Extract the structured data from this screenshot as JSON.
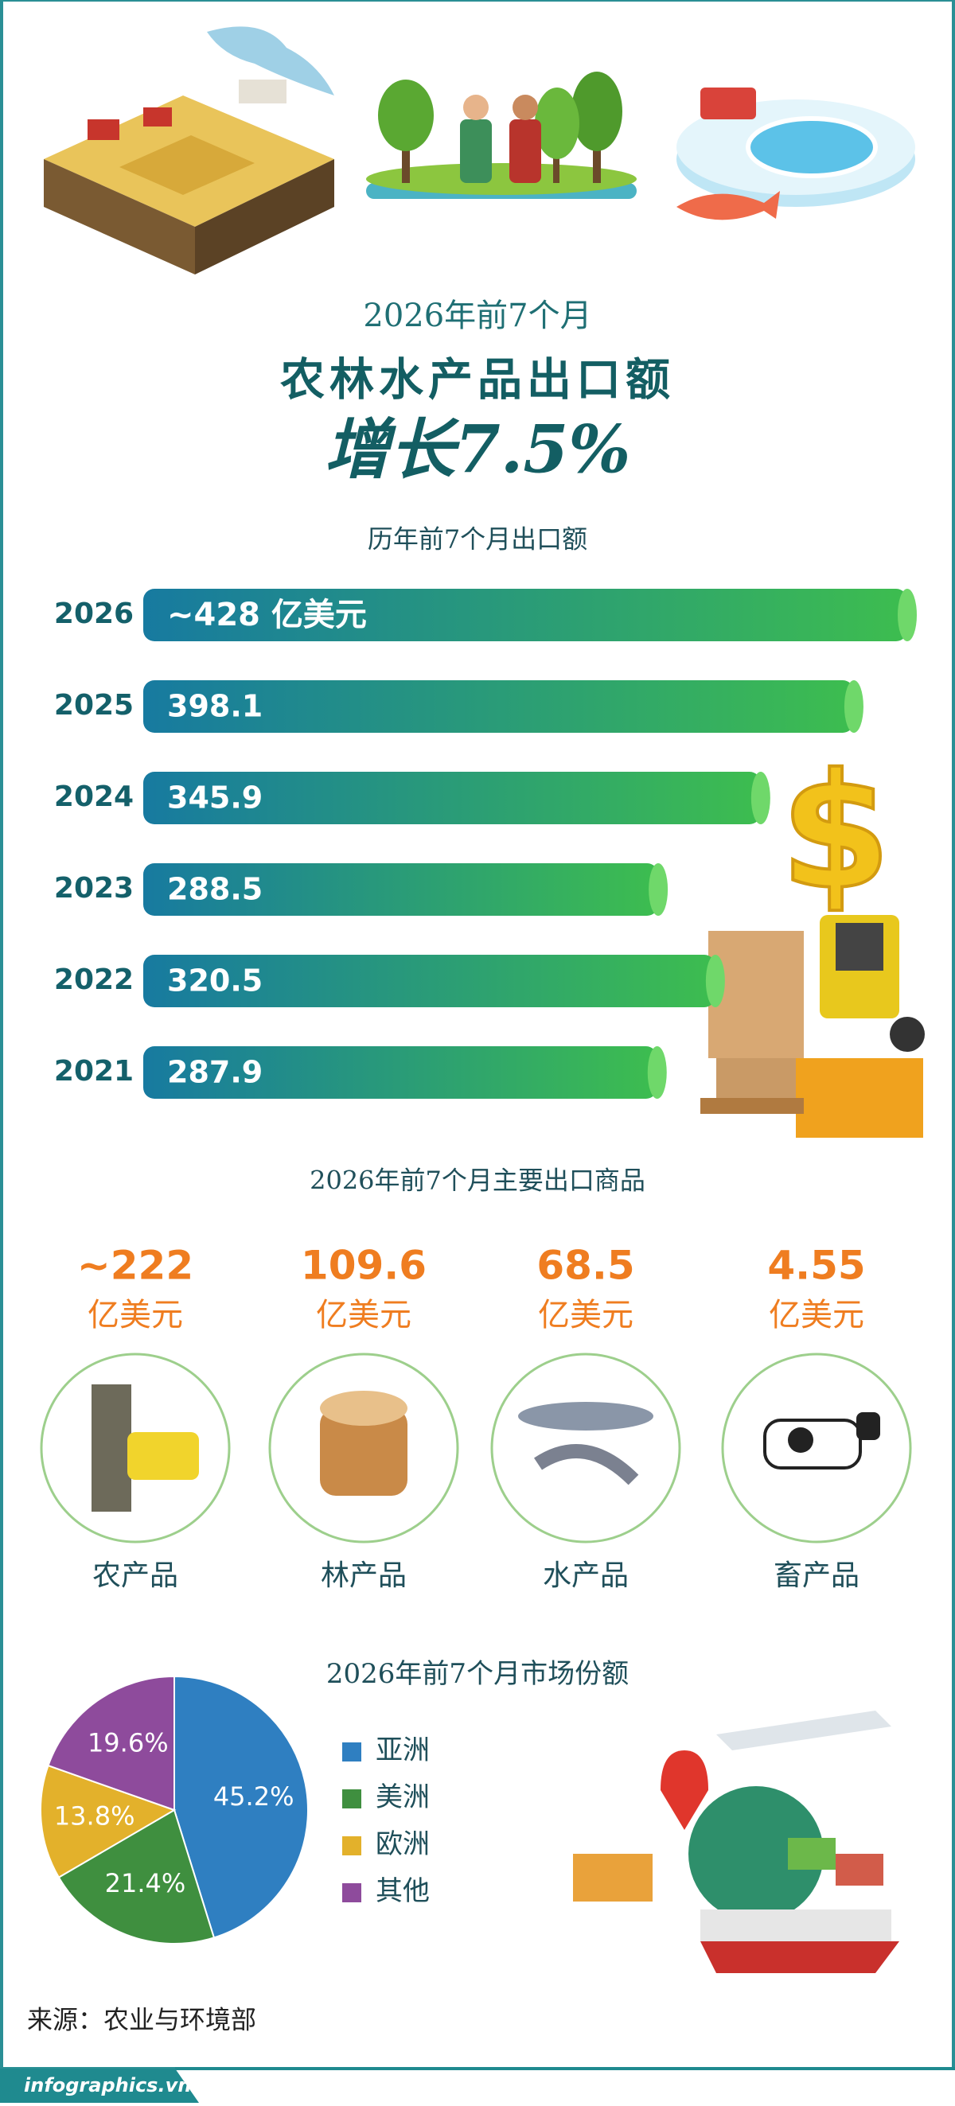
{
  "header": {
    "kicker": "2026年前7个月",
    "title": "农林水产品出口额",
    "headline": "增长7.5%"
  },
  "chart_data": [
    {
      "type": "bar",
      "orientation": "horizontal",
      "title": "历年前7个月出口额",
      "categories": [
        "2026",
        "2025",
        "2024",
        "2023",
        "2022",
        "2021"
      ],
      "values": [
        428,
        398.1,
        345.9,
        288.5,
        320.5,
        287.9
      ],
      "value_labels": [
        "~428 亿美元",
        "398.1",
        "345.9",
        "288.5",
        "320.5",
        "287.9"
      ],
      "colors": [
        "#177aa0",
        "#3dbd4f"
      ]
    },
    {
      "type": "pie",
      "title": "2026年前7个月市场份额",
      "categories": [
        "亚洲",
        "美洲",
        "欧洲",
        "其他"
      ],
      "values": [
        45.2,
        21.4,
        13.8,
        19.6
      ],
      "value_labels": [
        "45.2%",
        "21.4%",
        "13.8%",
        "19.6%"
      ],
      "colors": [
        "#2f7fc1",
        "#3f8f3f",
        "#e3b12b",
        "#8e4b9c"
      ],
      "legend": "right"
    }
  ],
  "products": {
    "title": "2026年前7个月主要出口商品",
    "items": [
      {
        "value": 222,
        "value_label": "~222",
        "unit": "亿美元",
        "label": "农产品"
      },
      {
        "value": 109.6,
        "value_label": "109.6",
        "unit": "亿美元",
        "label": "林产品"
      },
      {
        "value": 68.5,
        "value_label": "68.5",
        "unit": "亿美元",
        "label": "水产品"
      },
      {
        "value": 4.55,
        "value_label": "4.55",
        "unit": "亿美元",
        "label": "畜产品"
      }
    ]
  },
  "source": "来源：农业与环境部",
  "footer": "infographics.vn"
}
